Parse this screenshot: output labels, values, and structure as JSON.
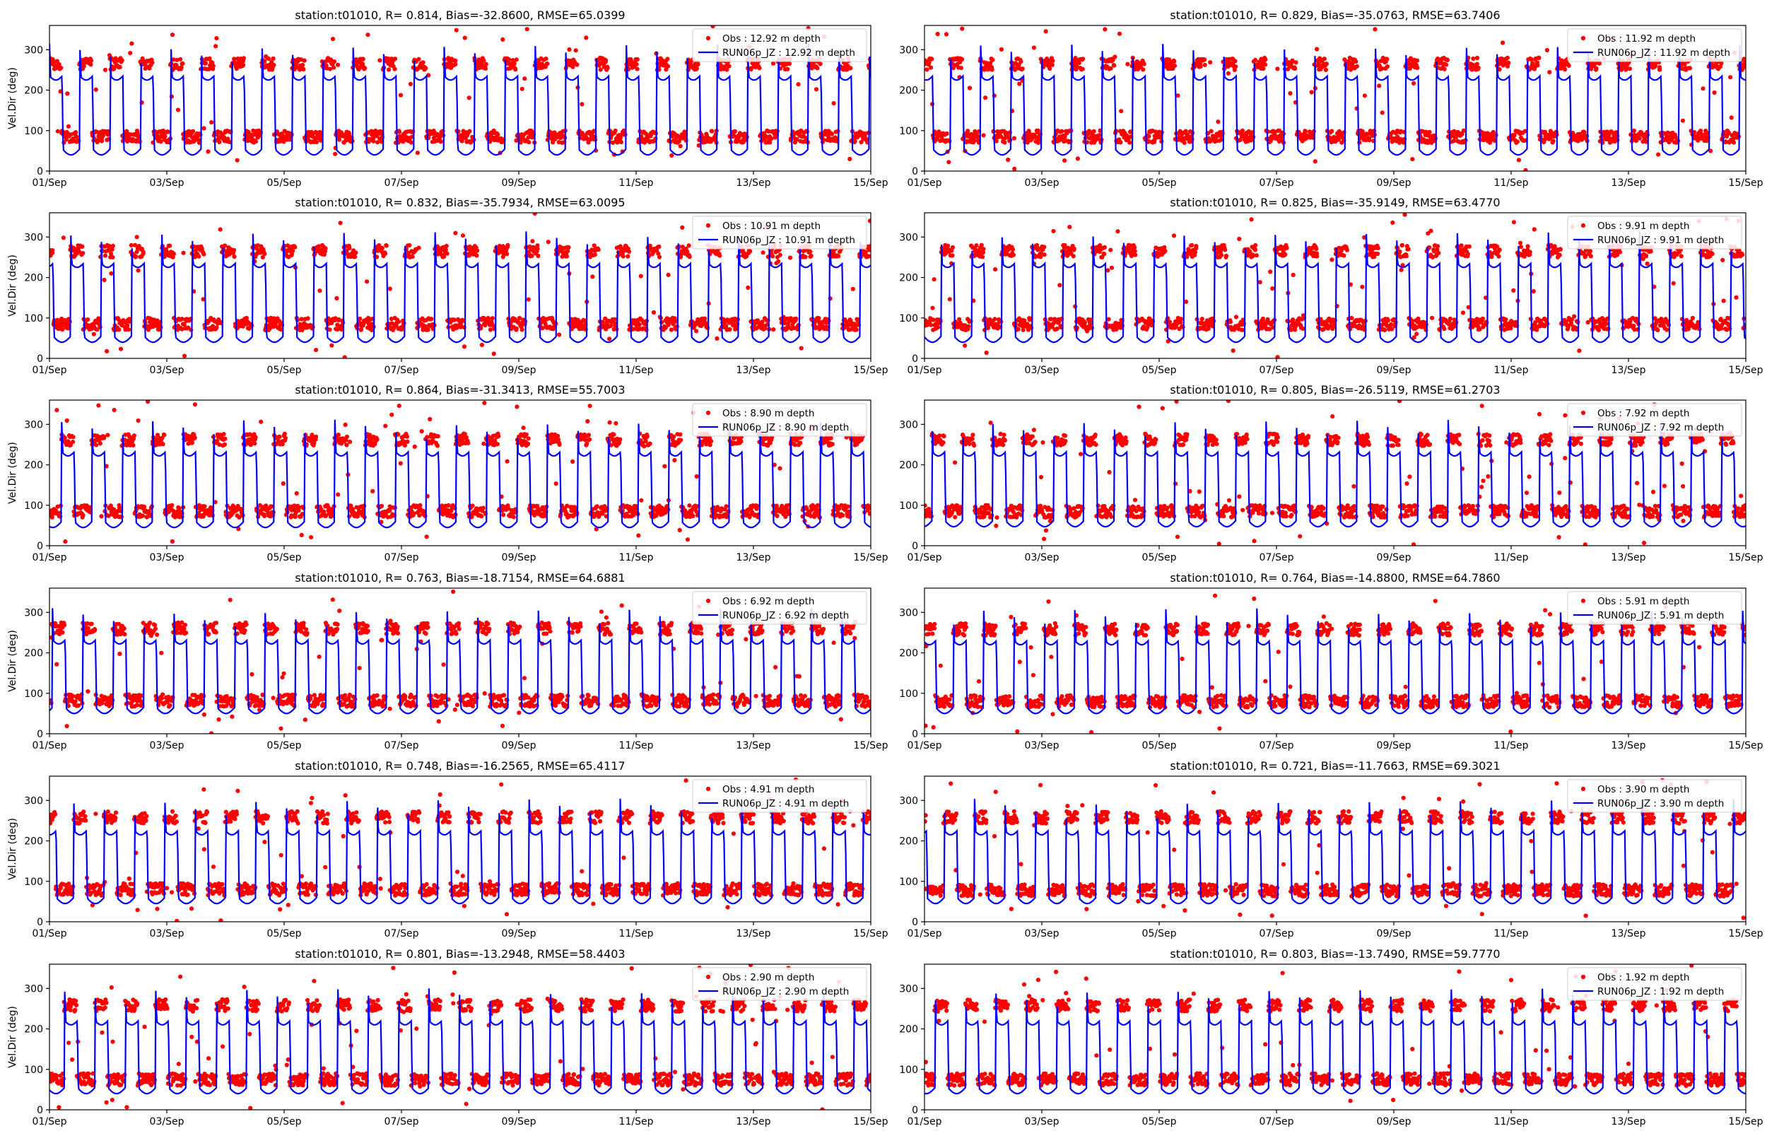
{
  "figure": {
    "x_ticks": [
      "01/Sep",
      "03/Sep",
      "05/Sep",
      "07/Sep",
      "09/Sep",
      "11/Sep",
      "13/Sep",
      "15/Sep"
    ],
    "y_ticks": [
      "0",
      "100",
      "200",
      "300"
    ],
    "ylabel": "Vel.Dir (deg)",
    "obs_color": "#ff0000",
    "model_color": "#0000ff"
  },
  "chart_data": [
    {
      "type": "scatter",
      "title": "station:t01010, R= 0.814, Bias=-32.8600, RMSE=65.0399",
      "xlabel": "",
      "ylabel": "Vel.Dir (deg)",
      "xlim": [
        "01/Sep",
        "15/Sep"
      ],
      "ylim": [
        0,
        360
      ],
      "depth_m": 12.92,
      "bias": -32.86,
      "legend_position": "top-right",
      "grid": false,
      "series": [
        {
          "name": "Obs : 12.92 m depth",
          "kind": "points",
          "ebb_mean": 85,
          "flood_mean": 265
        },
        {
          "name": "RUN06p_JZ : 12.92 m depth",
          "kind": "line",
          "ebb_mean": 55,
          "flood_mean": 235
        }
      ]
    },
    {
      "type": "scatter",
      "title": "station:t01010, R= 0.829, Bias=-35.0763, RMSE=63.7406",
      "xlabel": "",
      "ylabel": "",
      "xlim": [
        "01/Sep",
        "15/Sep"
      ],
      "ylim": [
        0,
        360
      ],
      "depth_m": 11.92,
      "bias": -35.0763,
      "legend_position": "top-right",
      "grid": false,
      "series": [
        {
          "name": "Obs : 11.92 m depth",
          "kind": "points",
          "ebb_mean": 85,
          "flood_mean": 265
        },
        {
          "name": "RUN06p_JZ : 11.92 m depth",
          "kind": "line",
          "ebb_mean": 55,
          "flood_mean": 235
        }
      ]
    },
    {
      "type": "scatter",
      "title": "station:t01010, R= 0.832, Bias=-35.7934, RMSE=63.0095",
      "xlabel": "",
      "ylabel": "Vel.Dir (deg)",
      "xlim": [
        "01/Sep",
        "15/Sep"
      ],
      "ylim": [
        0,
        360
      ],
      "depth_m": 10.91,
      "bias": -35.7934,
      "legend_position": "top-right",
      "grid": false,
      "series": [
        {
          "name": "Obs : 10.91 m depth",
          "kind": "points",
          "ebb_mean": 85,
          "flood_mean": 265
        },
        {
          "name": "RUN06p_JZ : 10.91 m depth",
          "kind": "line",
          "ebb_mean": 55,
          "flood_mean": 235
        }
      ]
    },
    {
      "type": "scatter",
      "title": "station:t01010, R= 0.825, Bias=-35.9149, RMSE=63.4770",
      "xlabel": "",
      "ylabel": "",
      "xlim": [
        "01/Sep",
        "15/Sep"
      ],
      "ylim": [
        0,
        360
      ],
      "depth_m": 9.91,
      "bias": -35.9149,
      "legend_position": "top-right",
      "grid": false,
      "series": [
        {
          "name": "Obs : 9.91 m depth",
          "kind": "points",
          "ebb_mean": 85,
          "flood_mean": 265
        },
        {
          "name": "RUN06p_JZ : 9.91 m depth",
          "kind": "line",
          "ebb_mean": 55,
          "flood_mean": 235
        }
      ]
    },
    {
      "type": "scatter",
      "title": "station:t01010, R= 0.864, Bias=-31.3413, RMSE=55.7003",
      "xlabel": "",
      "ylabel": "Vel.Dir (deg)",
      "xlim": [
        "01/Sep",
        "15/Sep"
      ],
      "ylim": [
        0,
        360
      ],
      "depth_m": 8.9,
      "bias": -31.3413,
      "legend_position": "top-right",
      "grid": false,
      "series": [
        {
          "name": "Obs : 8.90 m depth",
          "kind": "points",
          "ebb_mean": 85,
          "flood_mean": 262
        },
        {
          "name": "RUN06p_JZ : 8.90 m depth",
          "kind": "line",
          "ebb_mean": 60,
          "flood_mean": 232
        }
      ]
    },
    {
      "type": "scatter",
      "title": "station:t01010, R= 0.805, Bias=-26.5119, RMSE=61.2703",
      "xlabel": "",
      "ylabel": "",
      "xlim": [
        "01/Sep",
        "15/Sep"
      ],
      "ylim": [
        0,
        360
      ],
      "depth_m": 7.92,
      "bias": -26.5119,
      "legend_position": "top-right",
      "grid": false,
      "series": [
        {
          "name": "Obs : 7.92 m depth",
          "kind": "points",
          "ebb_mean": 85,
          "flood_mean": 262
        },
        {
          "name": "RUN06p_JZ : 7.92 m depth",
          "kind": "line",
          "ebb_mean": 62,
          "flood_mean": 232
        }
      ]
    },
    {
      "type": "scatter",
      "title": "station:t01010, R= 0.763, Bias=-18.7154, RMSE=64.6881",
      "xlabel": "",
      "ylabel": "Vel.Dir (deg)",
      "xlim": [
        "01/Sep",
        "15/Sep"
      ],
      "ylim": [
        0,
        360
      ],
      "depth_m": 6.92,
      "bias": -18.7154,
      "legend_position": "top-right",
      "grid": false,
      "series": [
        {
          "name": "Obs : 6.92 m depth",
          "kind": "points",
          "ebb_mean": 82,
          "flood_mean": 260
        },
        {
          "name": "RUN06p_JZ : 6.92 m depth",
          "kind": "line",
          "ebb_mean": 65,
          "flood_mean": 232
        }
      ]
    },
    {
      "type": "scatter",
      "title": "station:t01010, R= 0.764, Bias=-14.8800, RMSE=64.7860",
      "xlabel": "",
      "ylabel": "",
      "xlim": [
        "01/Sep",
        "15/Sep"
      ],
      "ylim": [
        0,
        360
      ],
      "depth_m": 5.91,
      "bias": -14.88,
      "legend_position": "top-right",
      "grid": false,
      "series": [
        {
          "name": "Obs : 5.91 m depth",
          "kind": "points",
          "ebb_mean": 80,
          "flood_mean": 258
        },
        {
          "name": "RUN06p_JZ : 5.91 m depth",
          "kind": "line",
          "ebb_mean": 65,
          "flood_mean": 230
        }
      ]
    },
    {
      "type": "scatter",
      "title": "station:t01010, R= 0.748, Bias=-16.2565, RMSE=65.4117",
      "xlabel": "",
      "ylabel": "Vel.Dir (deg)",
      "xlim": [
        "01/Sep",
        "15/Sep"
      ],
      "ylim": [
        0,
        360
      ],
      "depth_m": 4.91,
      "bias": -16.2565,
      "legend_position": "top-right",
      "grid": false,
      "series": [
        {
          "name": "Obs : 4.91 m depth",
          "kind": "points",
          "ebb_mean": 80,
          "flood_mean": 258
        },
        {
          "name": "RUN06p_JZ : 4.91 m depth",
          "kind": "line",
          "ebb_mean": 60,
          "flood_mean": 225
        }
      ]
    },
    {
      "type": "scatter",
      "title": "station:t01010, R= 0.721, Bias=-11.7663, RMSE=69.3021",
      "xlabel": "",
      "ylabel": "",
      "xlim": [
        "01/Sep",
        "15/Sep"
      ],
      "ylim": [
        0,
        360
      ],
      "depth_m": 3.9,
      "bias": -11.7663,
      "legend_position": "top-right",
      "grid": false,
      "series": [
        {
          "name": "Obs : 3.90 m depth",
          "kind": "points",
          "ebb_mean": 78,
          "flood_mean": 258
        },
        {
          "name": "RUN06p_JZ : 3.90 m depth",
          "kind": "line",
          "ebb_mean": 60,
          "flood_mean": 225
        }
      ]
    },
    {
      "type": "scatter",
      "title": "station:t01010, R= 0.801, Bias=-13.2948, RMSE=58.4403",
      "xlabel": "",
      "ylabel": "Vel.Dir (deg)",
      "xlim": [
        "01/Sep",
        "15/Sep"
      ],
      "ylim": [
        0,
        360
      ],
      "depth_m": 2.9,
      "bias": -13.2948,
      "legend_position": "top-right",
      "grid": false,
      "series": [
        {
          "name": "Obs : 2.90 m depth",
          "kind": "points",
          "ebb_mean": 75,
          "flood_mean": 258
        },
        {
          "name": "RUN06p_JZ : 2.90 m depth",
          "kind": "line",
          "ebb_mean": 55,
          "flood_mean": 220
        }
      ]
    },
    {
      "type": "scatter",
      "title": "station:t01010, R= 0.803, Bias=-13.7490, RMSE=59.7770",
      "xlabel": "",
      "ylabel": "",
      "xlim": [
        "01/Sep",
        "15/Sep"
      ],
      "ylim": [
        0,
        360
      ],
      "depth_m": 1.92,
      "bias": -13.749,
      "legend_position": "top-right",
      "grid": false,
      "series": [
        {
          "name": "Obs : 1.92 m depth",
          "kind": "points",
          "ebb_mean": 75,
          "flood_mean": 258
        },
        {
          "name": "RUN06p_JZ : 1.92 m depth",
          "kind": "line",
          "ebb_mean": 55,
          "flood_mean": 220
        }
      ]
    }
  ]
}
